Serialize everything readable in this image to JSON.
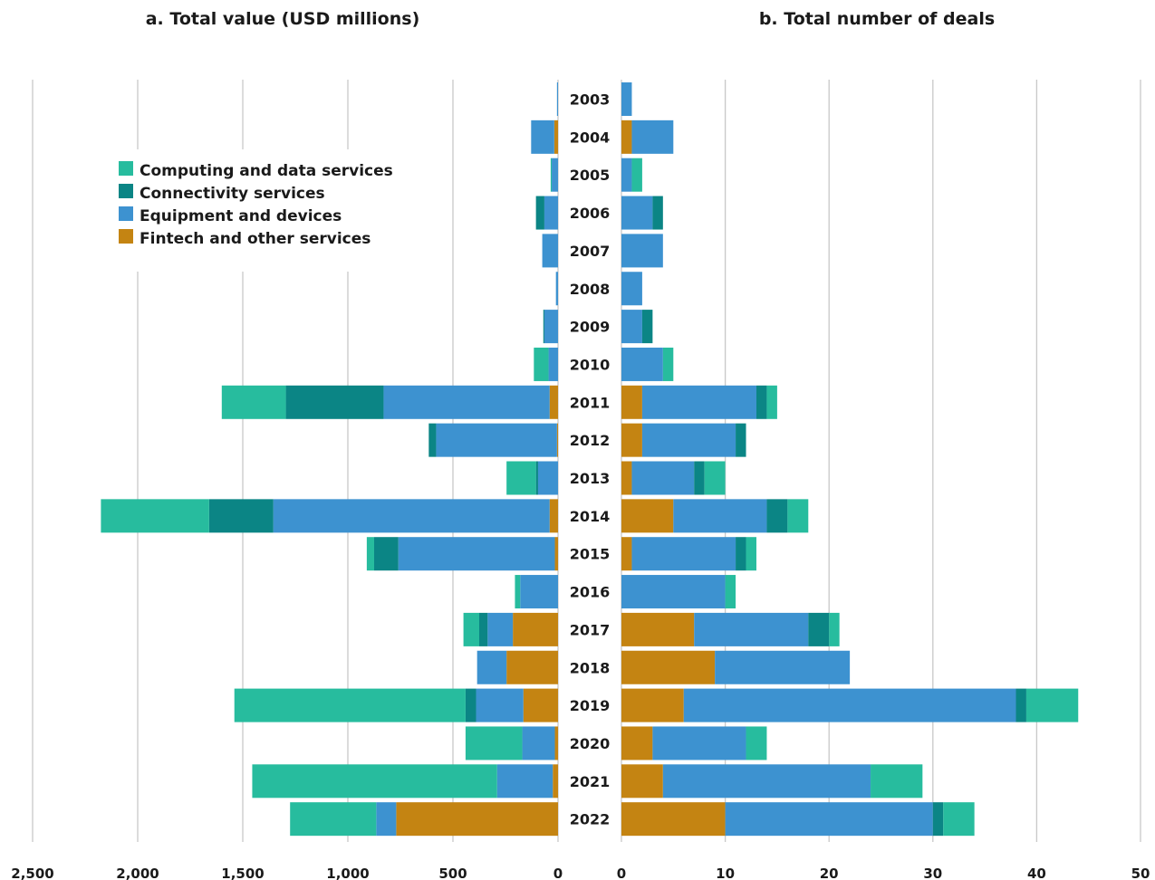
{
  "chart_data": [
    {
      "type": "bar",
      "orientation": "horizontal",
      "stacked": true,
      "direction": "leftward",
      "title": "a. Total value (USD millions)",
      "categories": [
        "2003",
        "2004",
        "2005",
        "2006",
        "2007",
        "2008",
        "2009",
        "2010",
        "2011",
        "2012",
        "2013",
        "2014",
        "2015",
        "2016",
        "2017",
        "2018",
        "2019",
        "2020",
        "2021",
        "2022"
      ],
      "xlim": [
        0,
        2500
      ],
      "ticks": [
        "2,500",
        "2,000",
        "1,500",
        "1,000",
        "500",
        "0"
      ],
      "tick_values": [
        2500,
        2000,
        1500,
        1000,
        500,
        0
      ],
      "grid": true,
      "series": [
        {
          "name": "Fintech and other services",
          "color": "#c48412",
          "values": [
            0,
            18,
            0,
            0,
            0,
            0,
            0,
            0,
            40,
            5,
            0,
            40,
            15,
            0,
            215,
            245,
            165,
            15,
            25,
            770
          ]
        },
        {
          "name": "Equipment and devices",
          "color": "#3d92d0",
          "values": [
            5,
            110,
            30,
            65,
            75,
            10,
            65,
            45,
            790,
            575,
            95,
            1315,
            745,
            180,
            120,
            140,
            225,
            155,
            265,
            95
          ]
        },
        {
          "name": "Connectivity services",
          "color": "#0b8585",
          "values": [
            0,
            0,
            0,
            40,
            0,
            0,
            5,
            0,
            465,
            35,
            10,
            305,
            115,
            0,
            40,
            0,
            50,
            0,
            0,
            0
          ]
        },
        {
          "name": "Computing and data services",
          "color": "#27bc9e",
          "values": [
            0,
            0,
            5,
            0,
            0,
            0,
            0,
            70,
            305,
            0,
            140,
            515,
            35,
            25,
            75,
            0,
            1100,
            270,
            1165,
            410
          ]
        }
      ]
    },
    {
      "type": "bar",
      "orientation": "horizontal",
      "stacked": true,
      "direction": "rightward",
      "title": "b. Total number of deals",
      "categories": [
        "2003",
        "2004",
        "2005",
        "2006",
        "2007",
        "2008",
        "2009",
        "2010",
        "2011",
        "2012",
        "2013",
        "2014",
        "2015",
        "2016",
        "2017",
        "2018",
        "2019",
        "2020",
        "2021",
        "2022"
      ],
      "xlim": [
        0,
        50
      ],
      "ticks": [
        "0",
        "10",
        "20",
        "30",
        "40",
        "50"
      ],
      "tick_values": [
        0,
        10,
        20,
        30,
        40,
        50
      ],
      "grid": true,
      "series": [
        {
          "name": "Fintech and other services",
          "color": "#c48412",
          "values": [
            0,
            1,
            0,
            0,
            0,
            0,
            0,
            0,
            2,
            2,
            1,
            5,
            1,
            0,
            7,
            9,
            6,
            3,
            4,
            10
          ]
        },
        {
          "name": "Equipment and devices",
          "color": "#3d92d0",
          "values": [
            1,
            4,
            1,
            3,
            4,
            2,
            2,
            4,
            11,
            9,
            6,
            9,
            10,
            10,
            11,
            13,
            32,
            9,
            20,
            20
          ]
        },
        {
          "name": "Connectivity services",
          "color": "#0b8585",
          "values": [
            0,
            0,
            0,
            1,
            0,
            0,
            1,
            0,
            1,
            1,
            1,
            2,
            1,
            0,
            2,
            0,
            1,
            0,
            0,
            1
          ]
        },
        {
          "name": "Computing and data services",
          "color": "#27bc9e",
          "values": [
            0,
            0,
            1,
            0,
            0,
            0,
            0,
            1,
            1,
            0,
            2,
            2,
            1,
            1,
            1,
            0,
            5,
            2,
            5,
            3
          ]
        }
      ]
    }
  ],
  "legend": {
    "placement": "upper-left",
    "items": [
      {
        "label": "Computing and data services",
        "color": "#27bc9e"
      },
      {
        "label": "Connectivity services",
        "color": "#0b8585"
      },
      {
        "label": "Equipment and devices",
        "color": "#3d92d0"
      },
      {
        "label": "Fintech and other services",
        "color": "#c48412"
      }
    ]
  }
}
